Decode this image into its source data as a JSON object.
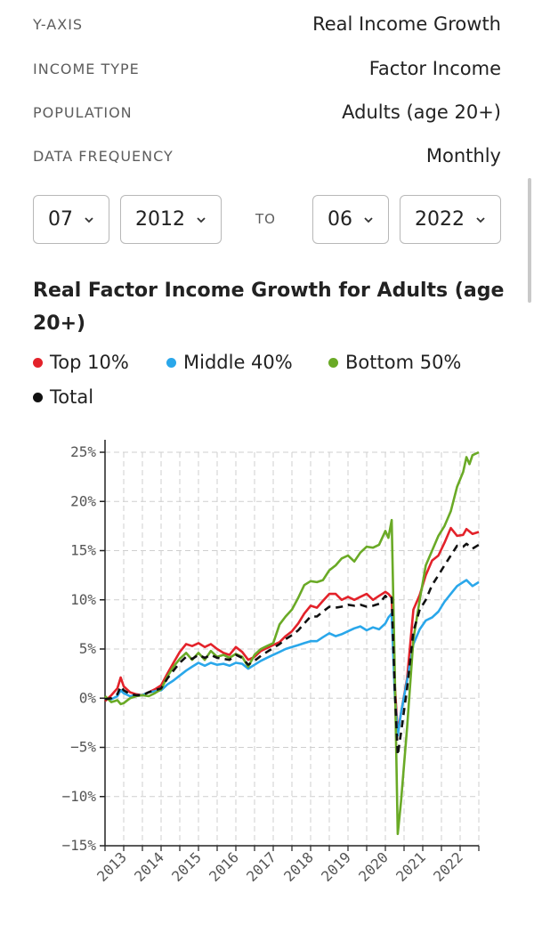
{
  "settings": [
    {
      "label": "Y-AXIS",
      "value": "Real Income Growth"
    },
    {
      "label": "INCOME TYPE",
      "value": "Factor Income"
    },
    {
      "label": "POPULATION",
      "value": "Adults (age 20+)"
    },
    {
      "label": "DATA FREQUENCY",
      "value": "Monthly"
    }
  ],
  "date_range": {
    "start_month": "07",
    "start_year": "2012",
    "to_label": "TO",
    "end_month": "06",
    "end_year": "2022"
  },
  "icons": {
    "select": "chevron-down-icon",
    "legend": "dot-icon"
  },
  "chart_data": {
    "type": "line",
    "title": "Real Factor Income Growth for Adults (age 20+)",
    "xlabel": "",
    "ylabel": "",
    "xlim": [
      2012.5,
      2022.5
    ],
    "ylim": [
      -15,
      25
    ],
    "yticks": [
      25,
      20,
      15,
      10,
      5,
      0,
      -5,
      -10,
      -15
    ],
    "ytick_labels": [
      "25%",
      "20%",
      "15%",
      "10%",
      "5%",
      "0%",
      "−5%",
      "−10%",
      "−15%"
    ],
    "xticks": [
      2013,
      2014,
      2015,
      2016,
      2017,
      2018,
      2019,
      2020,
      2021,
      2022
    ],
    "xtick_labels": [
      "2013",
      "2014",
      "2015",
      "2016",
      "2017",
      "2018",
      "2019",
      "2020",
      "2021",
      "2022"
    ],
    "grid": true,
    "legend_position": "top",
    "series": [
      {
        "name": "Top 10%",
        "color": "#e3222a",
        "dash": false,
        "points": [
          [
            2012.5,
            -0.3
          ],
          [
            2012.67,
            0.3
          ],
          [
            2012.83,
            1.0
          ],
          [
            2012.92,
            2.1
          ],
          [
            2013.0,
            1.2
          ],
          [
            2013.17,
            0.6
          ],
          [
            2013.33,
            0.4
          ],
          [
            2013.5,
            0.3
          ],
          [
            2013.67,
            0.6
          ],
          [
            2013.83,
            0.9
          ],
          [
            2014.0,
            1.3
          ],
          [
            2014.17,
            2.5
          ],
          [
            2014.33,
            3.6
          ],
          [
            2014.5,
            4.7
          ],
          [
            2014.67,
            5.5
          ],
          [
            2014.83,
            5.3
          ],
          [
            2015.0,
            5.6
          ],
          [
            2015.17,
            5.2
          ],
          [
            2015.33,
            5.5
          ],
          [
            2015.5,
            5.0
          ],
          [
            2015.67,
            4.6
          ],
          [
            2015.83,
            4.4
          ],
          [
            2016.0,
            5.2
          ],
          [
            2016.17,
            4.7
          ],
          [
            2016.33,
            3.9
          ],
          [
            2016.5,
            4.2
          ],
          [
            2016.67,
            4.8
          ],
          [
            2016.83,
            5.1
          ],
          [
            2017.0,
            5.4
          ],
          [
            2017.17,
            5.7
          ],
          [
            2017.33,
            6.3
          ],
          [
            2017.5,
            6.8
          ],
          [
            2017.67,
            7.6
          ],
          [
            2017.83,
            8.6
          ],
          [
            2018.0,
            9.4
          ],
          [
            2018.17,
            9.2
          ],
          [
            2018.33,
            9.9
          ],
          [
            2018.5,
            10.6
          ],
          [
            2018.67,
            10.6
          ],
          [
            2018.83,
            10.0
          ],
          [
            2019.0,
            10.3
          ],
          [
            2019.17,
            10.0
          ],
          [
            2019.33,
            10.3
          ],
          [
            2019.5,
            10.6
          ],
          [
            2019.67,
            10.0
          ],
          [
            2019.83,
            10.4
          ],
          [
            2020.0,
            10.8
          ],
          [
            2020.08,
            10.6
          ],
          [
            2020.17,
            10.2
          ],
          [
            2020.25,
            1.5
          ],
          [
            2020.33,
            -3.5
          ],
          [
            2020.42,
            -1.5
          ],
          [
            2020.58,
            2.0
          ],
          [
            2020.75,
            9.0
          ],
          [
            2020.92,
            10.5
          ],
          [
            2021.08,
            12.5
          ],
          [
            2021.25,
            14.0
          ],
          [
            2021.42,
            14.5
          ],
          [
            2021.58,
            15.8
          ],
          [
            2021.75,
            17.3
          ],
          [
            2021.92,
            16.5
          ],
          [
            2022.08,
            16.6
          ],
          [
            2022.17,
            17.2
          ],
          [
            2022.33,
            16.7
          ],
          [
            2022.5,
            16.9
          ]
        ]
      },
      {
        "name": "Middle 40%",
        "color": "#2aa7ea",
        "dash": false,
        "points": [
          [
            2012.5,
            0.0
          ],
          [
            2012.67,
            -0.1
          ],
          [
            2012.83,
            0.2
          ],
          [
            2012.92,
            0.8
          ],
          [
            2013.0,
            0.5
          ],
          [
            2013.17,
            0.2
          ],
          [
            2013.33,
            0.3
          ],
          [
            2013.5,
            0.3
          ],
          [
            2013.67,
            0.6
          ],
          [
            2013.83,
            0.7
          ],
          [
            2014.0,
            0.8
          ],
          [
            2014.17,
            1.4
          ],
          [
            2014.33,
            1.8
          ],
          [
            2014.5,
            2.3
          ],
          [
            2014.67,
            2.8
          ],
          [
            2014.83,
            3.2
          ],
          [
            2015.0,
            3.6
          ],
          [
            2015.17,
            3.3
          ],
          [
            2015.33,
            3.6
          ],
          [
            2015.5,
            3.4
          ],
          [
            2015.67,
            3.5
          ],
          [
            2015.83,
            3.3
          ],
          [
            2016.0,
            3.6
          ],
          [
            2016.17,
            3.5
          ],
          [
            2016.33,
            3.0
          ],
          [
            2016.5,
            3.4
          ],
          [
            2016.67,
            3.8
          ],
          [
            2016.83,
            4.1
          ],
          [
            2017.0,
            4.4
          ],
          [
            2017.17,
            4.7
          ],
          [
            2017.33,
            5.0
          ],
          [
            2017.5,
            5.2
          ],
          [
            2017.67,
            5.4
          ],
          [
            2017.83,
            5.6
          ],
          [
            2018.0,
            5.8
          ],
          [
            2018.17,
            5.8
          ],
          [
            2018.33,
            6.2
          ],
          [
            2018.5,
            6.6
          ],
          [
            2018.67,
            6.3
          ],
          [
            2018.83,
            6.5
          ],
          [
            2019.0,
            6.8
          ],
          [
            2019.17,
            7.1
          ],
          [
            2019.33,
            7.3
          ],
          [
            2019.5,
            6.9
          ],
          [
            2019.67,
            7.2
          ],
          [
            2019.83,
            7.0
          ],
          [
            2020.0,
            7.6
          ],
          [
            2020.08,
            8.2
          ],
          [
            2020.17,
            8.6
          ],
          [
            2020.25,
            0.5
          ],
          [
            2020.33,
            -3.8
          ],
          [
            2020.42,
            -1.5
          ],
          [
            2020.58,
            1.8
          ],
          [
            2020.75,
            5.5
          ],
          [
            2020.92,
            7.0
          ],
          [
            2021.08,
            7.9
          ],
          [
            2021.25,
            8.2
          ],
          [
            2021.42,
            8.8
          ],
          [
            2021.58,
            9.8
          ],
          [
            2021.75,
            10.6
          ],
          [
            2021.92,
            11.4
          ],
          [
            2022.08,
            11.8
          ],
          [
            2022.17,
            12.0
          ],
          [
            2022.33,
            11.4
          ],
          [
            2022.5,
            11.8
          ]
        ]
      },
      {
        "name": "Bottom 50%",
        "color": "#6aaa26",
        "dash": false,
        "points": [
          [
            2012.5,
            0.2
          ],
          [
            2012.67,
            -0.4
          ],
          [
            2012.83,
            -0.2
          ],
          [
            2012.92,
            -0.6
          ],
          [
            2013.0,
            -0.5
          ],
          [
            2013.17,
            0.0
          ],
          [
            2013.33,
            0.2
          ],
          [
            2013.5,
            0.3
          ],
          [
            2013.67,
            0.2
          ],
          [
            2013.83,
            0.5
          ],
          [
            2014.0,
            0.9
          ],
          [
            2014.17,
            2.2
          ],
          [
            2014.33,
            3.2
          ],
          [
            2014.5,
            4.0
          ],
          [
            2014.67,
            4.6
          ],
          [
            2014.83,
            3.9
          ],
          [
            2015.0,
            4.6
          ],
          [
            2015.17,
            3.9
          ],
          [
            2015.33,
            4.8
          ],
          [
            2015.5,
            4.2
          ],
          [
            2015.67,
            4.4
          ],
          [
            2015.83,
            4.1
          ],
          [
            2016.0,
            4.5
          ],
          [
            2016.17,
            4.2
          ],
          [
            2016.33,
            3.2
          ],
          [
            2016.5,
            4.4
          ],
          [
            2016.67,
            5.0
          ],
          [
            2016.83,
            5.3
          ],
          [
            2017.0,
            5.6
          ],
          [
            2017.17,
            7.5
          ],
          [
            2017.33,
            8.3
          ],
          [
            2017.5,
            9.0
          ],
          [
            2017.67,
            10.2
          ],
          [
            2017.83,
            11.5
          ],
          [
            2018.0,
            11.9
          ],
          [
            2018.17,
            11.8
          ],
          [
            2018.33,
            12.0
          ],
          [
            2018.5,
            13.0
          ],
          [
            2018.67,
            13.5
          ],
          [
            2018.83,
            14.2
          ],
          [
            2019.0,
            14.5
          ],
          [
            2019.17,
            13.9
          ],
          [
            2019.33,
            14.8
          ],
          [
            2019.5,
            15.4
          ],
          [
            2019.67,
            15.3
          ],
          [
            2019.83,
            15.6
          ],
          [
            2020.0,
            17.0
          ],
          [
            2020.08,
            16.3
          ],
          [
            2020.17,
            18.1
          ],
          [
            2020.25,
            3.0
          ],
          [
            2020.33,
            -13.8
          ],
          [
            2020.42,
            -10.5
          ],
          [
            2020.58,
            -3.0
          ],
          [
            2020.75,
            6.0
          ],
          [
            2020.92,
            10.0
          ],
          [
            2021.08,
            13.5
          ],
          [
            2021.25,
            15.0
          ],
          [
            2021.42,
            16.5
          ],
          [
            2021.58,
            17.5
          ],
          [
            2021.75,
            19.0
          ],
          [
            2021.92,
            21.5
          ],
          [
            2022.08,
            23.0
          ],
          [
            2022.17,
            24.5
          ],
          [
            2022.25,
            23.8
          ],
          [
            2022.33,
            24.7
          ],
          [
            2022.5,
            25.0
          ]
        ]
      },
      {
        "name": "Total",
        "color": "#111111",
        "dash": true,
        "points": [
          [
            2012.5,
            -0.1
          ],
          [
            2012.67,
            0.0
          ],
          [
            2012.83,
            0.4
          ],
          [
            2012.92,
            1.2
          ],
          [
            2013.0,
            0.8
          ],
          [
            2013.17,
            0.4
          ],
          [
            2013.33,
            0.3
          ],
          [
            2013.5,
            0.3
          ],
          [
            2013.67,
            0.6
          ],
          [
            2013.83,
            0.8
          ],
          [
            2014.0,
            1.0
          ],
          [
            2014.17,
            2.0
          ],
          [
            2014.33,
            2.8
          ],
          [
            2014.5,
            3.6
          ],
          [
            2014.67,
            4.2
          ],
          [
            2014.83,
            4.0
          ],
          [
            2015.0,
            4.4
          ],
          [
            2015.17,
            4.1
          ],
          [
            2015.33,
            4.4
          ],
          [
            2015.5,
            4.1
          ],
          [
            2015.67,
            4.0
          ],
          [
            2015.83,
            3.9
          ],
          [
            2016.0,
            4.4
          ],
          [
            2016.17,
            4.1
          ],
          [
            2016.33,
            3.4
          ],
          [
            2016.5,
            3.8
          ],
          [
            2016.67,
            4.3
          ],
          [
            2016.83,
            4.7
          ],
          [
            2017.0,
            5.1
          ],
          [
            2017.17,
            5.5
          ],
          [
            2017.33,
            6.0
          ],
          [
            2017.5,
            6.4
          ],
          [
            2017.67,
            6.9
          ],
          [
            2017.83,
            7.6
          ],
          [
            2018.0,
            8.3
          ],
          [
            2018.17,
            8.3
          ],
          [
            2018.33,
            8.8
          ],
          [
            2018.5,
            9.3
          ],
          [
            2018.67,
            9.2
          ],
          [
            2018.83,
            9.3
          ],
          [
            2019.0,
            9.5
          ],
          [
            2019.17,
            9.4
          ],
          [
            2019.33,
            9.5
          ],
          [
            2019.5,
            9.3
          ],
          [
            2019.67,
            9.4
          ],
          [
            2019.83,
            9.6
          ],
          [
            2020.0,
            10.4
          ],
          [
            2020.08,
            10.0
          ],
          [
            2020.17,
            10.2
          ],
          [
            2020.25,
            1.0
          ],
          [
            2020.33,
            -5.8
          ],
          [
            2020.42,
            -3.5
          ],
          [
            2020.58,
            1.0
          ],
          [
            2020.75,
            6.8
          ],
          [
            2020.92,
            9.0
          ],
          [
            2021.08,
            10.0
          ],
          [
            2021.25,
            11.5
          ],
          [
            2021.42,
            12.5
          ],
          [
            2021.58,
            13.5
          ],
          [
            2021.75,
            14.5
          ],
          [
            2021.92,
            15.5
          ],
          [
            2022.08,
            15.4
          ],
          [
            2022.17,
            15.7
          ],
          [
            2022.33,
            15.2
          ],
          [
            2022.5,
            15.6
          ]
        ]
      }
    ]
  }
}
